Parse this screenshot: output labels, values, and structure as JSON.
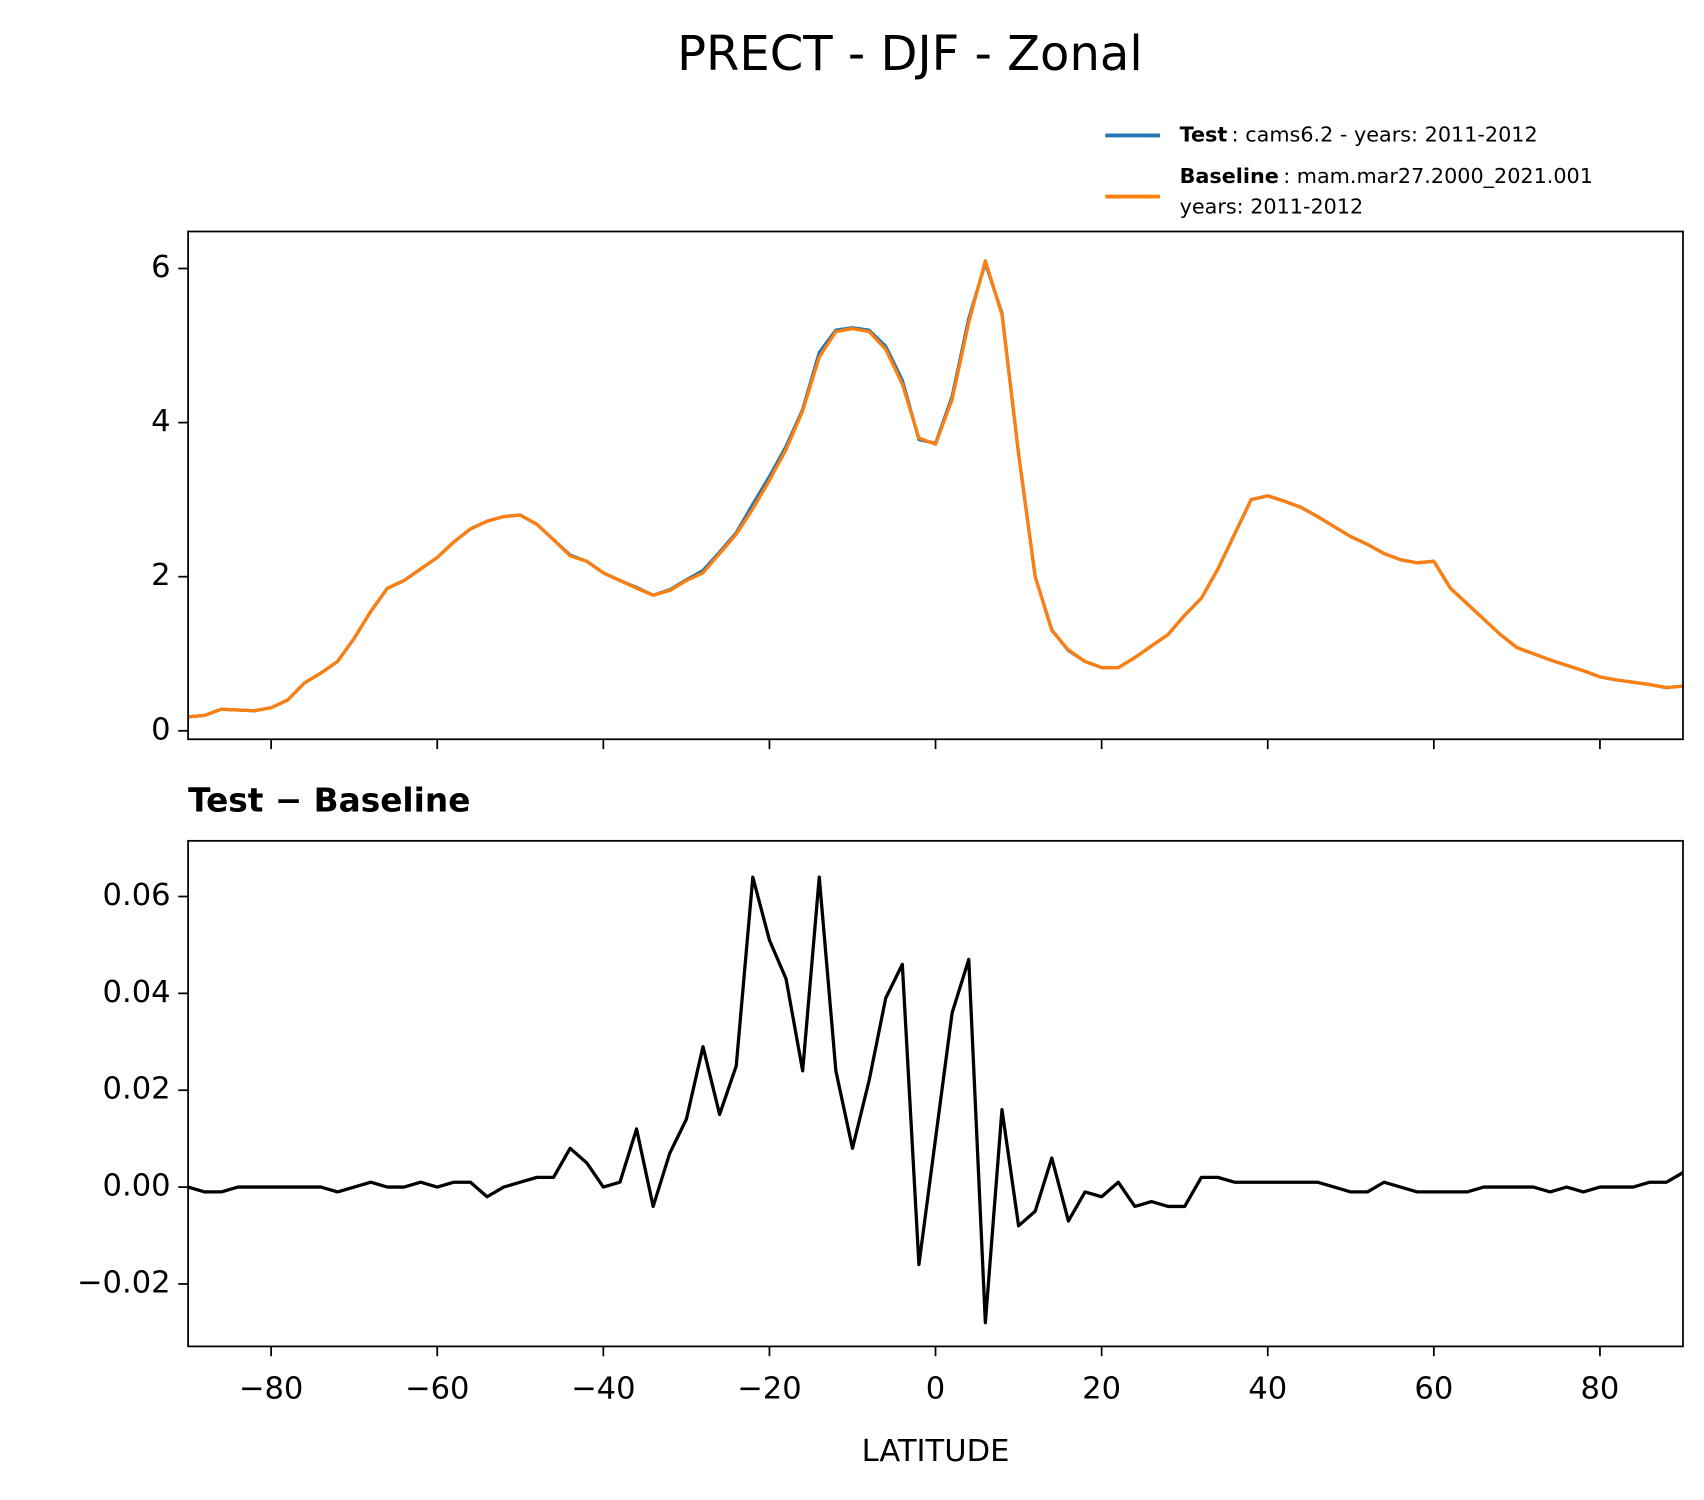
{
  "chart_data": [
    {
      "type": "line",
      "title": "PRECT - DJF - Zonal",
      "x": [
        -90,
        -88,
        -86,
        -84,
        -82,
        -80,
        -78,
        -76,
        -74,
        -72,
        -70,
        -68,
        -66,
        -64,
        -62,
        -60,
        -58,
        -56,
        -54,
        -52,
        -50,
        -48,
        -46,
        -44,
        -42,
        -40,
        -38,
        -36,
        -34,
        -32,
        -30,
        -28,
        -26,
        -24,
        -22,
        -20,
        -18,
        -16,
        -14,
        -12,
        -10,
        -8,
        -6,
        -4,
        -2,
        0,
        2,
        4,
        6,
        8,
        10,
        12,
        14,
        16,
        18,
        20,
        22,
        24,
        26,
        28,
        30,
        32,
        34,
        36,
        38,
        40,
        42,
        44,
        46,
        48,
        50,
        52,
        54,
        56,
        58,
        60,
        62,
        64,
        66,
        68,
        70,
        72,
        74,
        76,
        78,
        80,
        82,
        84,
        86,
        88,
        90
      ],
      "series": [
        {
          "name": "Test",
          "color": "#1f77b4",
          "values": [
            0.18,
            0.2,
            0.28,
            0.27,
            0.26,
            0.3,
            0.4,
            0.62,
            0.75,
            0.9,
            1.2,
            1.55,
            1.85,
            1.95,
            2.1,
            2.25,
            2.45,
            2.62,
            2.72,
            2.78,
            2.8,
            2.68,
            2.48,
            2.28,
            2.2,
            2.05,
            1.95,
            1.86,
            1.76,
            1.83,
            1.96,
            2.08,
            2.32,
            2.57,
            2.94,
            3.3,
            3.69,
            4.17,
            4.91,
            5.2,
            5.23,
            5.2,
            4.99,
            4.55,
            3.78,
            3.73,
            4.34,
            5.35,
            6.07,
            5.42,
            3.59,
            2.0,
            1.31,
            1.04,
            0.9,
            0.82,
            0.82,
            0.95,
            1.1,
            1.25,
            1.5,
            1.72,
            2.1,
            2.55,
            3.0,
            3.05,
            2.98,
            2.9,
            2.78,
            2.65,
            2.52,
            2.42,
            2.3,
            2.22,
            2.18,
            2.2,
            1.85,
            1.65,
            1.45,
            1.25,
            1.08,
            1.0,
            0.92,
            0.85,
            0.78,
            0.7,
            0.66,
            0.63,
            0.6,
            0.56,
            0.58
          ]
        },
        {
          "name": "Baseline",
          "color": "#ff7f0e",
          "values": [
            0.18,
            0.2,
            0.28,
            0.27,
            0.26,
            0.3,
            0.4,
            0.62,
            0.75,
            0.9,
            1.2,
            1.55,
            1.85,
            1.95,
            2.1,
            2.25,
            2.45,
            2.62,
            2.72,
            2.78,
            2.8,
            2.68,
            2.48,
            2.27,
            2.2,
            2.05,
            1.95,
            1.85,
            1.76,
            1.82,
            1.95,
            2.05,
            2.3,
            2.55,
            2.88,
            3.25,
            3.65,
            4.15,
            4.85,
            5.18,
            5.22,
            5.18,
            4.95,
            4.5,
            3.8,
            3.72,
            4.3,
            5.3,
            6.1,
            5.4,
            3.6,
            2.0,
            1.3,
            1.05,
            0.9,
            0.82,
            0.82,
            0.95,
            1.1,
            1.25,
            1.5,
            1.72,
            2.1,
            2.55,
            3.0,
            3.05,
            2.98,
            2.9,
            2.78,
            2.65,
            2.52,
            2.42,
            2.3,
            2.22,
            2.18,
            2.2,
            1.85,
            1.65,
            1.45,
            1.25,
            1.08,
            1.0,
            0.92,
            0.85,
            0.78,
            0.7,
            0.66,
            0.63,
            0.6,
            0.56,
            0.58
          ]
        }
      ],
      "legend_text": [
        [
          ": cams6.2 - years: 2011-2012"
        ],
        [
          ": mam.mar27.2000_2021.001",
          "years: 2011-2012"
        ]
      ],
      "legend": "upper right",
      "xlim": [
        -90,
        90
      ],
      "xticks": [
        {
          "value": -80,
          "label": "−80"
        },
        {
          "value": -60,
          "label": "−60"
        },
        {
          "value": -40,
          "label": "−40"
        },
        {
          "value": -20,
          "label": "−20"
        },
        0,
        20,
        40,
        60,
        80
      ],
      "ylim": [
        -0.11,
        6.48
      ],
      "yticks": [
        0,
        2,
        4,
        6
      ]
    },
    {
      "type": "line",
      "title": "Test − Baseline",
      "xlabel": "LATITUDE",
      "color": "#000000",
      "x": [
        -90,
        -88,
        -86,
        -84,
        -82,
        -80,
        -78,
        -76,
        -74,
        -72,
        -70,
        -68,
        -66,
        -64,
        -62,
        -60,
        -58,
        -56,
        -54,
        -52,
        -50,
        -48,
        -46,
        -44,
        -42,
        -40,
        -38,
        -36,
        -34,
        -32,
        -30,
        -28,
        -26,
        -24,
        -22,
        -20,
        -18,
        -16,
        -14,
        -12,
        -10,
        -8,
        -6,
        -4,
        -2,
        0,
        2,
        4,
        6,
        8,
        10,
        12,
        14,
        16,
        18,
        20,
        22,
        24,
        26,
        28,
        30,
        32,
        34,
        36,
        38,
        40,
        42,
        44,
        46,
        48,
        50,
        52,
        54,
        56,
        58,
        60,
        62,
        64,
        66,
        68,
        70,
        72,
        74,
        76,
        78,
        80,
        82,
        84,
        86,
        88,
        90
      ],
      "values": [
        0.0,
        -0.001,
        -0.001,
        0.0,
        0.0,
        0.0,
        0.0,
        0.0,
        0.0,
        -0.001,
        0.0,
        0.001,
        0.0,
        0.0,
        0.001,
        0.0,
        0.001,
        0.001,
        -0.002,
        0.0,
        0.001,
        0.002,
        0.002,
        0.008,
        0.005,
        0.0,
        0.001,
        0.012,
        -0.004,
        0.007,
        0.014,
        0.029,
        0.015,
        0.025,
        0.064,
        0.051,
        0.043,
        0.024,
        0.064,
        0.024,
        0.008,
        0.022,
        0.039,
        0.046,
        -0.016,
        0.01,
        0.036,
        0.047,
        -0.028,
        0.016,
        -0.008,
        -0.005,
        0.006,
        -0.007,
        -0.001,
        -0.002,
        0.001,
        -0.004,
        -0.003,
        -0.004,
        -0.004,
        0.002,
        0.002,
        0.001,
        0.001,
        0.001,
        0.001,
        0.001,
        0.001,
        0.0,
        -0.001,
        -0.001,
        0.001,
        0.0,
        -0.001,
        -0.001,
        -0.001,
        -0.001,
        0.0,
        0.0,
        0.0,
        0.0,
        -0.001,
        0.0,
        -0.001,
        0.0,
        0.0,
        0.0,
        0.001,
        0.001,
        0.003
      ],
      "xlim": [
        -90,
        90
      ],
      "xticks": [
        {
          "value": -80,
          "label": "−80"
        },
        {
          "value": -60,
          "label": "−60"
        },
        {
          "value": -40,
          "label": "−40"
        },
        {
          "value": -20,
          "label": "−20"
        },
        0,
        20,
        40,
        60,
        80
      ],
      "ylim": [
        -0.0329,
        0.0715
      ],
      "yticks": [
        {
          "value": -0.02,
          "label": "−0.02"
        },
        {
          "value": 0,
          "label": "0.00"
        },
        {
          "value": 0.02,
          "label": "0.02"
        },
        {
          "value": 0.04,
          "label": "0.04"
        },
        {
          "value": 0.06,
          "label": "0.06"
        }
      ]
    }
  ]
}
